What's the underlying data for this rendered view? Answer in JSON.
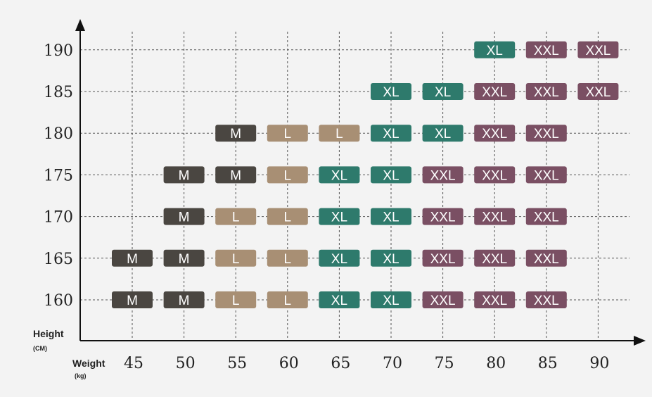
{
  "chart_data": {
    "type": "table",
    "title": "",
    "ylabel": "Height",
    "ylabel_unit": "(CM)",
    "xlabel": "Weight",
    "xlabel_unit": "(kg)",
    "x": [
      45,
      50,
      55,
      60,
      65,
      70,
      75,
      80,
      85,
      90
    ],
    "y": [
      160,
      165,
      170,
      175,
      180,
      185,
      190
    ],
    "grid": true,
    "size_colors": {
      "M": "#4a4641",
      "L": "#a88f74",
      "XL": "#2e7a6c",
      "XXL": "#7a4f63"
    },
    "cells": [
      {
        "weight": 45,
        "height": 160,
        "size": "M"
      },
      {
        "weight": 50,
        "height": 160,
        "size": "M"
      },
      {
        "weight": 55,
        "height": 160,
        "size": "L"
      },
      {
        "weight": 60,
        "height": 160,
        "size": "L"
      },
      {
        "weight": 65,
        "height": 160,
        "size": "XL"
      },
      {
        "weight": 70,
        "height": 160,
        "size": "XL"
      },
      {
        "weight": 75,
        "height": 160,
        "size": "XXL"
      },
      {
        "weight": 80,
        "height": 160,
        "size": "XXL"
      },
      {
        "weight": 85,
        "height": 160,
        "size": "XXL"
      },
      {
        "weight": 45,
        "height": 165,
        "size": "M"
      },
      {
        "weight": 50,
        "height": 165,
        "size": "M"
      },
      {
        "weight": 55,
        "height": 165,
        "size": "L"
      },
      {
        "weight": 60,
        "height": 165,
        "size": "L"
      },
      {
        "weight": 65,
        "height": 165,
        "size": "XL"
      },
      {
        "weight": 70,
        "height": 165,
        "size": "XL"
      },
      {
        "weight": 75,
        "height": 165,
        "size": "XXL"
      },
      {
        "weight": 80,
        "height": 165,
        "size": "XXL"
      },
      {
        "weight": 85,
        "height": 165,
        "size": "XXL"
      },
      {
        "weight": 50,
        "height": 170,
        "size": "M"
      },
      {
        "weight": 55,
        "height": 170,
        "size": "L"
      },
      {
        "weight": 60,
        "height": 170,
        "size": "L"
      },
      {
        "weight": 65,
        "height": 170,
        "size": "XL"
      },
      {
        "weight": 70,
        "height": 170,
        "size": "XL"
      },
      {
        "weight": 75,
        "height": 170,
        "size": "XXL"
      },
      {
        "weight": 80,
        "height": 170,
        "size": "XXL"
      },
      {
        "weight": 85,
        "height": 170,
        "size": "XXL"
      },
      {
        "weight": 50,
        "height": 175,
        "size": "M"
      },
      {
        "weight": 55,
        "height": 175,
        "size": "M"
      },
      {
        "weight": 60,
        "height": 175,
        "size": "L"
      },
      {
        "weight": 65,
        "height": 175,
        "size": "XL"
      },
      {
        "weight": 70,
        "height": 175,
        "size": "XL"
      },
      {
        "weight": 75,
        "height": 175,
        "size": "XXL"
      },
      {
        "weight": 80,
        "height": 175,
        "size": "XXL"
      },
      {
        "weight": 85,
        "height": 175,
        "size": "XXL"
      },
      {
        "weight": 55,
        "height": 180,
        "size": "M"
      },
      {
        "weight": 60,
        "height": 180,
        "size": "L"
      },
      {
        "weight": 65,
        "height": 180,
        "size": "L"
      },
      {
        "weight": 70,
        "height": 180,
        "size": "XL"
      },
      {
        "weight": 75,
        "height": 180,
        "size": "XL"
      },
      {
        "weight": 80,
        "height": 180,
        "size": "XXL"
      },
      {
        "weight": 85,
        "height": 180,
        "size": "XXL"
      },
      {
        "weight": 70,
        "height": 185,
        "size": "XL"
      },
      {
        "weight": 75,
        "height": 185,
        "size": "XL"
      },
      {
        "weight": 80,
        "height": 185,
        "size": "XXL"
      },
      {
        "weight": 85,
        "height": 185,
        "size": "XXL"
      },
      {
        "weight": 90,
        "height": 185,
        "size": "XXL"
      },
      {
        "weight": 80,
        "height": 190,
        "size": "XL"
      },
      {
        "weight": 85,
        "height": 190,
        "size": "XXL"
      },
      {
        "weight": 90,
        "height": 190,
        "size": "XXL"
      }
    ]
  }
}
